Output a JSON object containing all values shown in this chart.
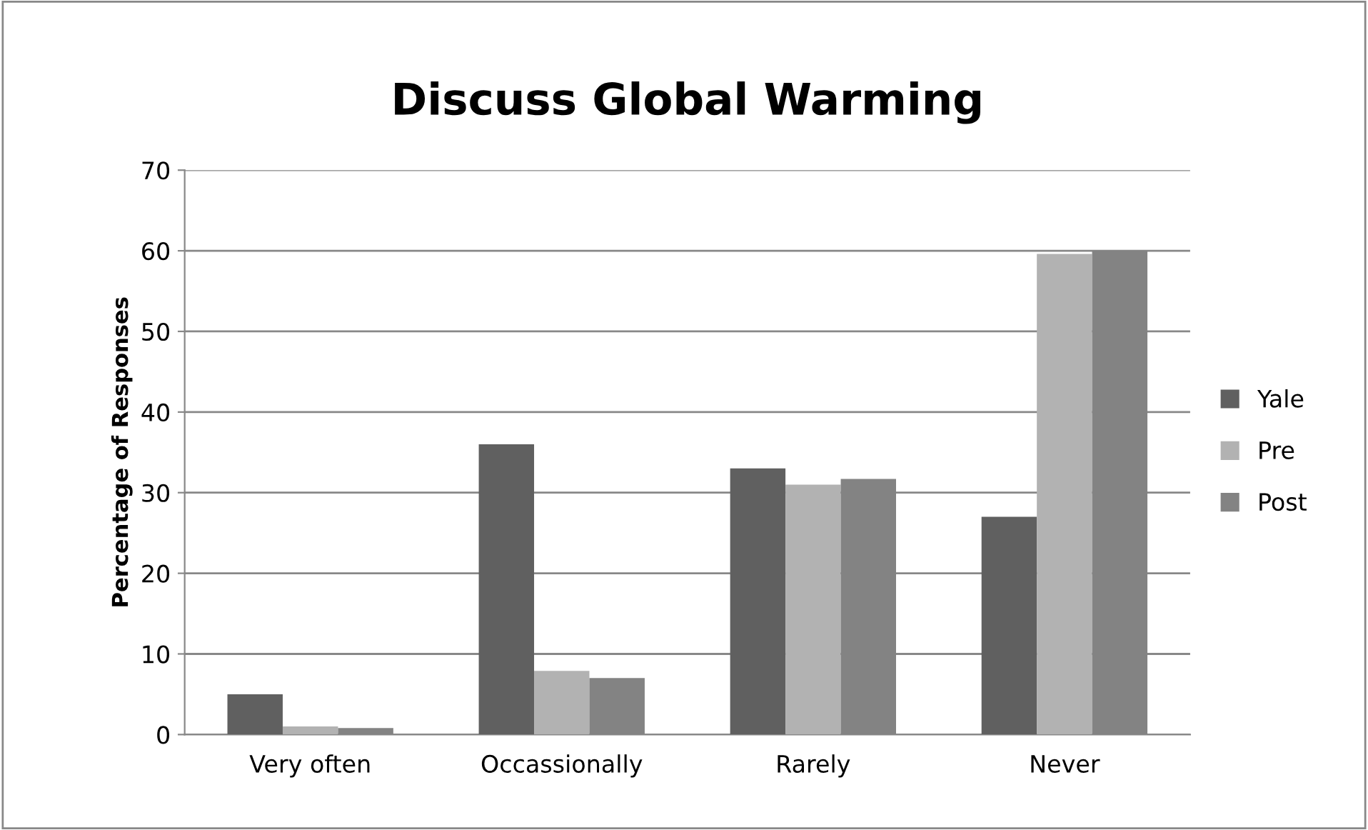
{
  "chart_data": {
    "type": "bar",
    "title": "Discuss Global Warming",
    "ylabel": "Percentage of Responses",
    "categories": [
      "Very often",
      "Occassionally",
      "Rarely",
      "Never"
    ],
    "series": [
      {
        "name": "Yale",
        "color": "#606060",
        "values": [
          5,
          36,
          33,
          27
        ]
      },
      {
        "name": "Pre",
        "color": "#b2b2b2",
        "values": [
          1,
          7.9,
          31,
          59.6
        ]
      },
      {
        "name": "Post",
        "color": "#838383",
        "values": [
          0.8,
          7,
          31.7,
          60
        ]
      }
    ],
    "ylim": [
      0,
      70
    ],
    "yticks": [
      0,
      10,
      20,
      30,
      40,
      50,
      60,
      70
    ],
    "grid": "y",
    "legend": "right"
  }
}
